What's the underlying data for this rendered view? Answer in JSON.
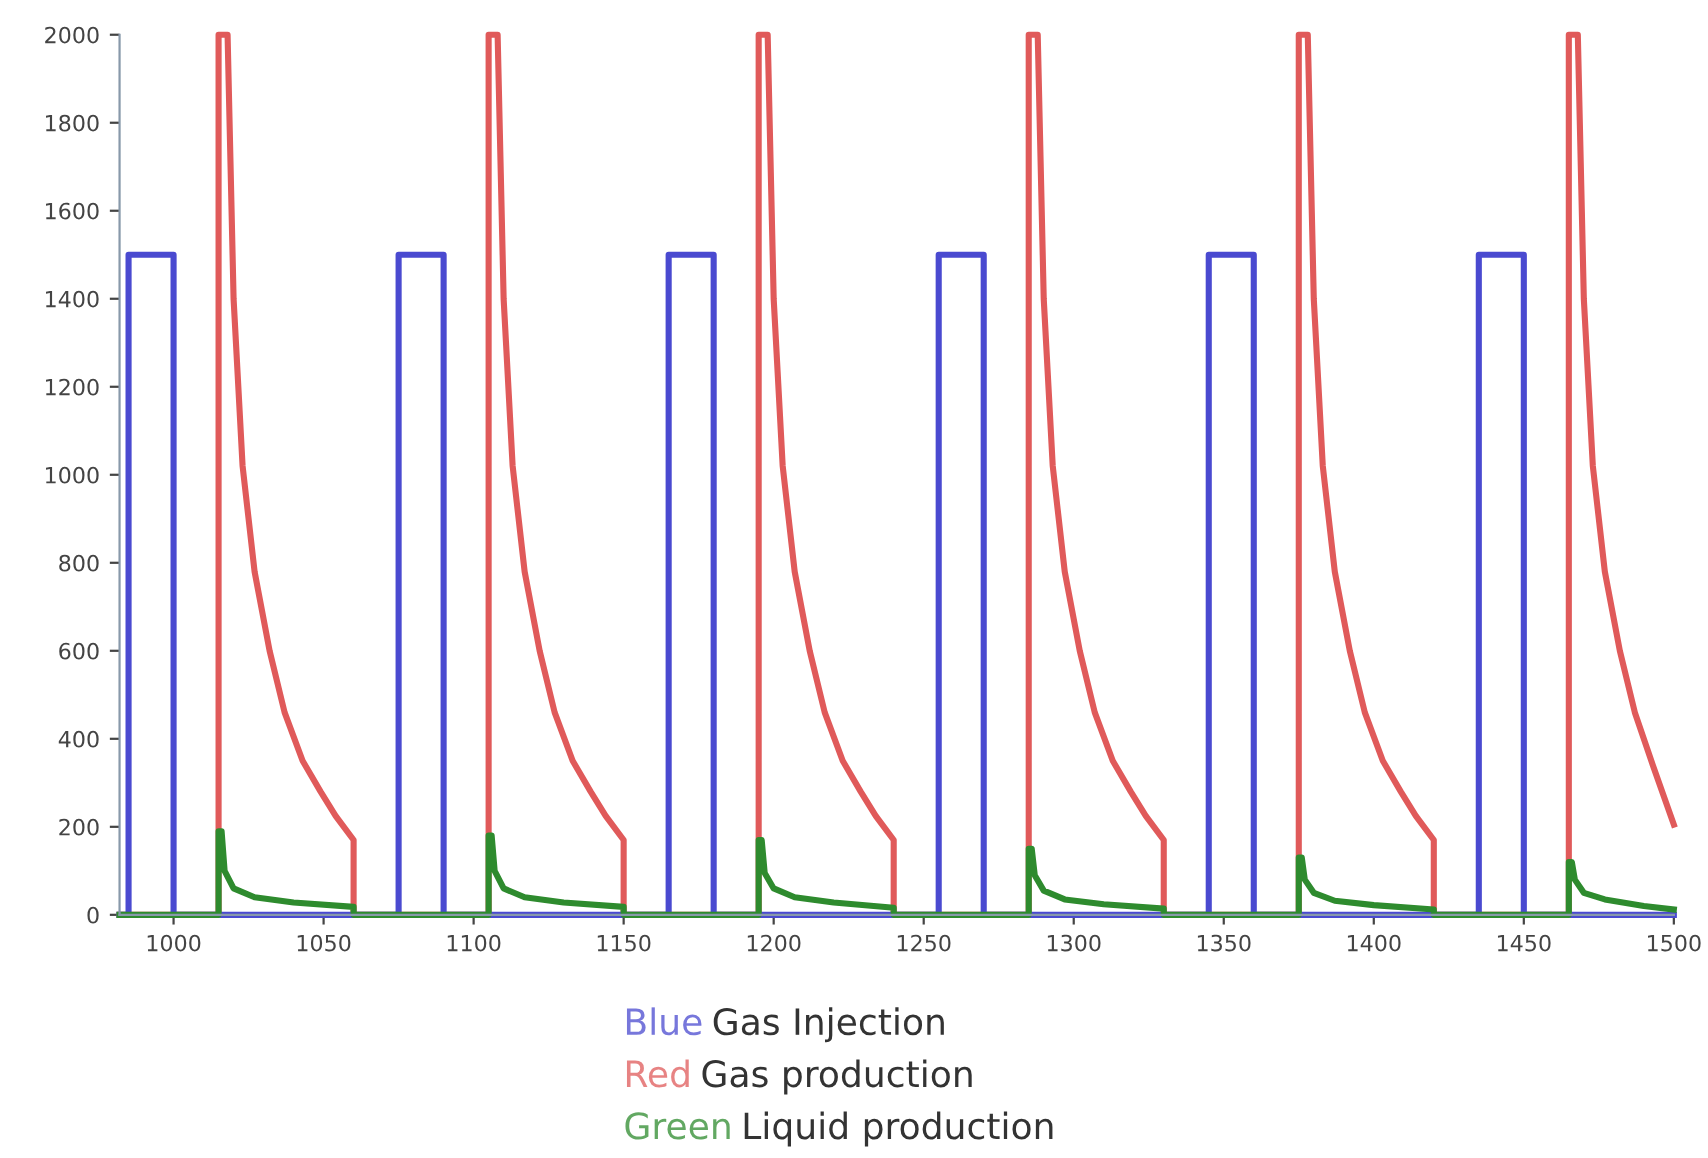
{
  "chart_data": {
    "type": "line",
    "xlim": [
      982,
      1500
    ],
    "ylim": [
      0,
      2000
    ],
    "xticks": [
      1000,
      1050,
      1100,
      1150,
      1200,
      1250,
      1300,
      1350,
      1400,
      1450,
      1500
    ],
    "yticks": [
      0,
      200,
      400,
      600,
      800,
      1000,
      1200,
      1400,
      1600,
      1800,
      2000
    ],
    "grid": false,
    "legend": "bottom",
    "marker": "none",
    "line_style": "solid",
    "series": [
      {
        "name": "Red Gas production",
        "color": "#e05a5a",
        "x": [
          982,
          1015,
          1015,
          1018,
          1020,
          1023,
          1027,
          1032,
          1037,
          1043,
          1049,
          1054,
          1060,
          1060,
          1105,
          1105,
          1108,
          1110,
          1113,
          1117,
          1122,
          1127,
          1133,
          1139,
          1144,
          1150,
          1150,
          1195,
          1195,
          1198,
          1200,
          1203,
          1207,
          1212,
          1217,
          1223,
          1229,
          1234,
          1240,
          1240,
          1285,
          1285,
          1288,
          1290,
          1293,
          1297,
          1302,
          1307,
          1313,
          1319,
          1324,
          1330,
          1330,
          1375,
          1375,
          1378,
          1380,
          1383,
          1387,
          1392,
          1397,
          1403,
          1409,
          1414,
          1420,
          1420,
          1465,
          1465,
          1468,
          1470,
          1473,
          1477,
          1482,
          1487,
          1493,
          1500
        ],
        "values": [
          0,
          0,
          2000,
          2000,
          1400,
          1020,
          780,
          600,
          460,
          350,
          280,
          225,
          170,
          0,
          0,
          2000,
          2000,
          1400,
          1020,
          780,
          600,
          460,
          350,
          280,
          225,
          170,
          0,
          0,
          2000,
          2000,
          1400,
          1020,
          780,
          600,
          460,
          350,
          280,
          225,
          170,
          0,
          0,
          2000,
          2000,
          1400,
          1020,
          780,
          600,
          460,
          350,
          280,
          225,
          170,
          0,
          0,
          2000,
          2000,
          1400,
          1020,
          780,
          600,
          460,
          350,
          280,
          225,
          170,
          0,
          0,
          2000,
          2000,
          1400,
          1020,
          780,
          600,
          460,
          340,
          205
        ]
      },
      {
        "name": "Blue Gas Injection",
        "color": "#4a4ad0",
        "x": [
          982,
          985,
          985,
          1000,
          1000,
          1075,
          1075,
          1090,
          1090,
          1165,
          1165,
          1180,
          1180,
          1255,
          1255,
          1270,
          1270,
          1345,
          1345,
          1360,
          1360,
          1435,
          1435,
          1450,
          1450,
          1500
        ],
        "values": [
          0,
          0,
          1500,
          1500,
          0,
          0,
          1500,
          1500,
          0,
          0,
          1500,
          1500,
          0,
          0,
          1500,
          1500,
          0,
          0,
          1500,
          1500,
          0,
          0,
          1500,
          1500,
          0,
          0
        ]
      },
      {
        "name": "Green Liquid production",
        "color": "#2e8b2e",
        "x": [
          982,
          1015,
          1015,
          1016,
          1017,
          1020,
          1027,
          1040,
          1060,
          1060,
          1105,
          1105,
          1106,
          1107,
          1110,
          1117,
          1130,
          1150,
          1150,
          1195,
          1195,
          1196,
          1197,
          1200,
          1207,
          1220,
          1240,
          1240,
          1285,
          1285,
          1286,
          1287,
          1290,
          1297,
          1310,
          1330,
          1330,
          1375,
          1375,
          1376,
          1377,
          1380,
          1387,
          1400,
          1420,
          1420,
          1465,
          1465,
          1466,
          1467,
          1470,
          1477,
          1490,
          1500
        ],
        "values": [
          0,
          0,
          190,
          190,
          100,
          60,
          40,
          28,
          18,
          0,
          0,
          180,
          180,
          100,
          60,
          40,
          28,
          18,
          0,
          0,
          170,
          170,
          95,
          60,
          40,
          28,
          16,
          0,
          0,
          150,
          150,
          90,
          55,
          35,
          24,
          14,
          0,
          0,
          130,
          130,
          80,
          50,
          32,
          22,
          12,
          0,
          0,
          120,
          120,
          80,
          50,
          35,
          20,
          12
        ]
      }
    ]
  }
}
